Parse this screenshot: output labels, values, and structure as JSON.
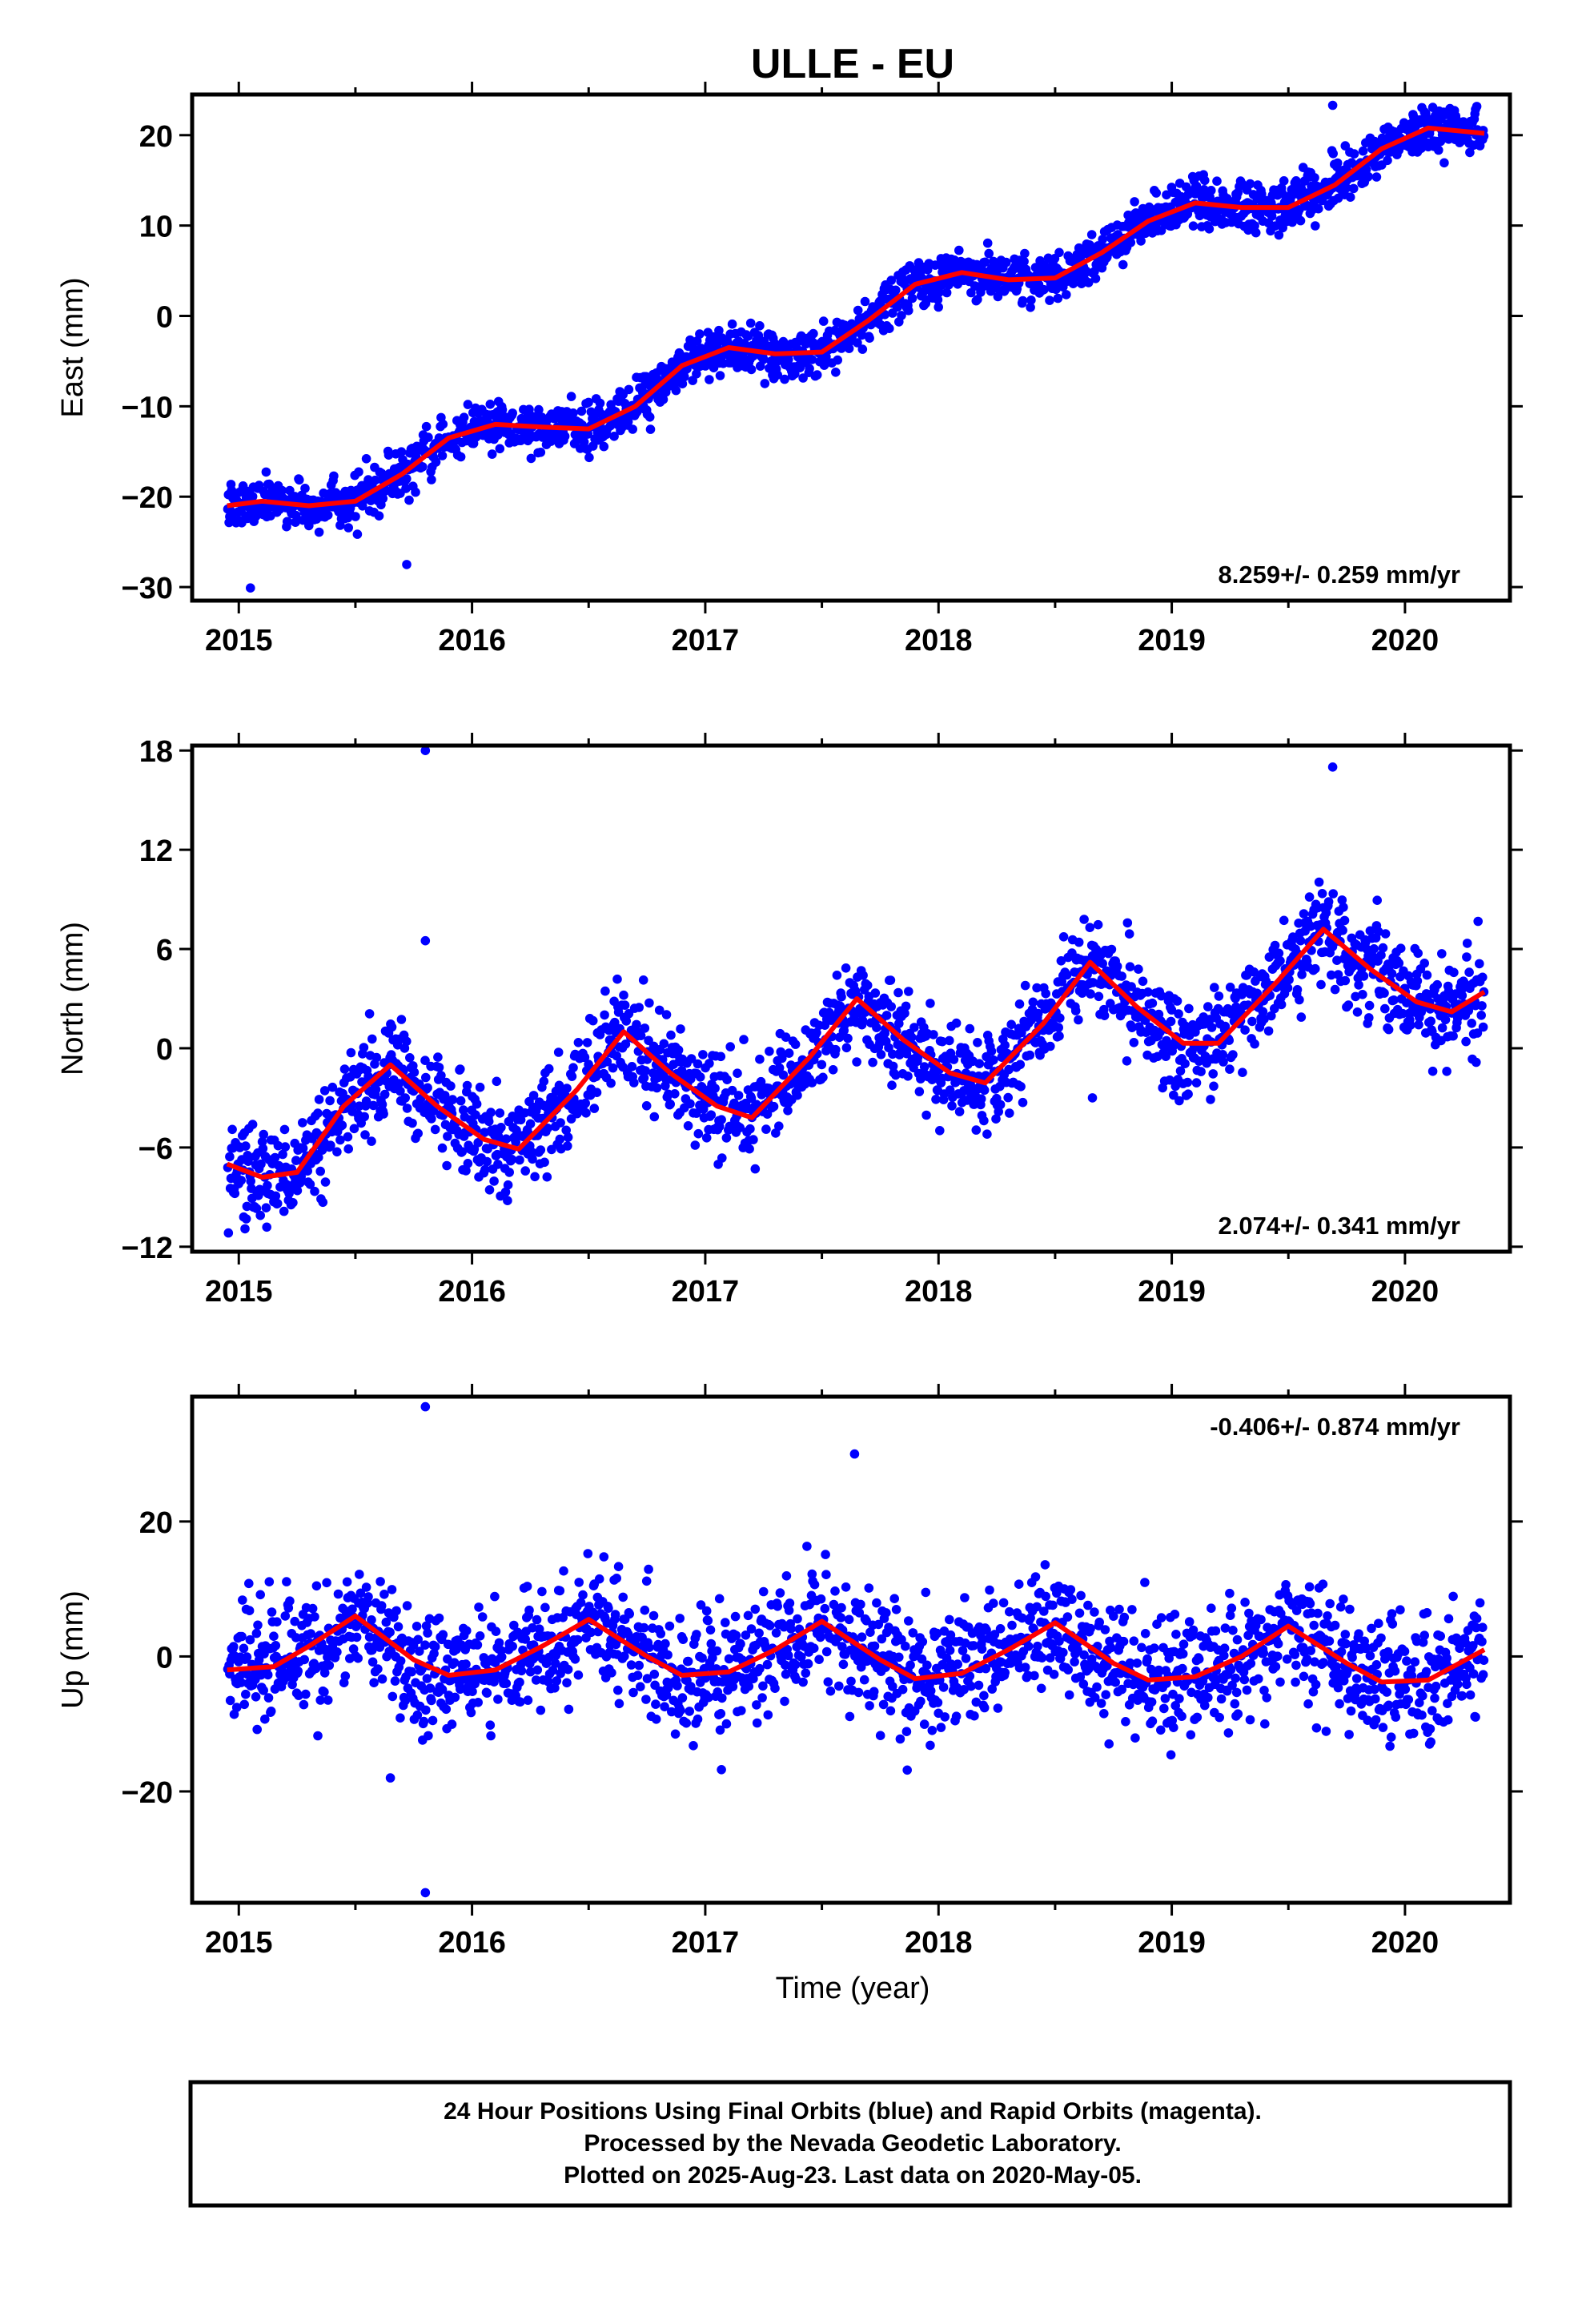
{
  "figure": {
    "title": "ULLE - EU",
    "xlabel": "Time (year)",
    "footer": [
      "24 Hour Positions Using Final Orbits (blue) and Rapid Orbits (magenta).",
      "Processed by the Nevada Geodetic Laboratory.",
      "Plotted on 2025-Aug-23. Last data on 2020-May-05."
    ],
    "colors": {
      "points": "#0000ff",
      "model": "#ff0000",
      "axes": "#000000"
    }
  },
  "chart_data": [
    {
      "type": "scatter",
      "ylabel": "East (mm)",
      "rate_label": "8.259+/- 0.259 mm/yr",
      "xlim": [
        2014.8,
        2020.45
      ],
      "ylim": [
        -31.5,
        24.5
      ],
      "xticks": [
        2015,
        2016,
        2017,
        2018,
        2019,
        2020
      ],
      "yticks": [
        -30,
        -20,
        -10,
        0,
        10,
        20
      ],
      "grid": false,
      "series": [
        {
          "marker": "dots",
          "x_range": [
            2014.95,
            2020.34
          ],
          "y_range_approx": [
            -30,
            23
          ],
          "outliers": [
            {
              "x": 2015.05,
              "y": -30.1
            },
            {
              "x": 2015.72,
              "y": -27.5
            },
            {
              "x": 2019.69,
              "y": 23.3
            }
          ]
        },
        {
          "line": "model",
          "x": [
            2014.95,
            2015.1,
            2015.3,
            2015.5,
            2015.7,
            2015.9,
            2016.1,
            2016.3,
            2016.5,
            2016.7,
            2016.9,
            2017.1,
            2017.3,
            2017.5,
            2017.7,
            2017.9,
            2018.1,
            2018.3,
            2018.5,
            2018.7,
            2018.9,
            2019.1,
            2019.3,
            2019.5,
            2019.7,
            2019.9,
            2020.1,
            2020.34
          ],
          "y": [
            -21.0,
            -20.5,
            -21.0,
            -20.5,
            -17.5,
            -13.5,
            -12.0,
            -12.3,
            -12.5,
            -10.0,
            -5.5,
            -3.5,
            -4.2,
            -4.0,
            -0.5,
            3.5,
            4.8,
            4.0,
            4.2,
            7.0,
            10.5,
            12.5,
            12.0,
            12.0,
            14.5,
            18.5,
            20.8,
            20.2
          ]
        }
      ]
    },
    {
      "type": "scatter",
      "ylabel": "North (mm)",
      "rate_label": "2.074+/- 0.341 mm/yr",
      "xlim": [
        2014.8,
        2020.45
      ],
      "ylim": [
        -12.3,
        18.3
      ],
      "xticks": [
        2015,
        2016,
        2017,
        2018,
        2019,
        2020
      ],
      "yticks": [
        -12,
        -6,
        0,
        6,
        12,
        18
      ],
      "grid": false,
      "series": [
        {
          "marker": "dots",
          "x_range": [
            2014.95,
            2020.34
          ],
          "y_range_approx": [
            -12,
            18
          ],
          "outliers": [
            {
              "x": 2015.8,
              "y": 18.0
            },
            {
              "x": 2015.8,
              "y": 6.5
            },
            {
              "x": 2019.69,
              "y": 17.0
            },
            {
              "x": 2018.66,
              "y": -3.0
            }
          ]
        },
        {
          "line": "model",
          "x": [
            2014.95,
            2015.1,
            2015.25,
            2015.45,
            2015.65,
            2015.85,
            2016.05,
            2016.2,
            2016.45,
            2016.65,
            2016.85,
            2017.05,
            2017.2,
            2017.45,
            2017.65,
            2017.85,
            2018.05,
            2018.2,
            2018.45,
            2018.65,
            2018.85,
            2019.05,
            2019.2,
            2019.45,
            2019.65,
            2019.85,
            2020.05,
            2020.2,
            2020.34
          ],
          "y": [
            -7.0,
            -7.8,
            -7.5,
            -3.5,
            -1.0,
            -3.5,
            -5.5,
            -6.1,
            -2.5,
            1.0,
            -1.5,
            -3.5,
            -4.2,
            -0.5,
            3.0,
            0.5,
            -1.5,
            -2.1,
            1.5,
            5.2,
            2.5,
            0.3,
            0.3,
            4.0,
            7.2,
            4.8,
            2.8,
            2.2,
            3.4
          ]
        }
      ]
    },
    {
      "type": "scatter",
      "ylabel": "Up (mm)",
      "rate_label": "-0.406+/- 0.874 mm/yr",
      "xlim": [
        2014.8,
        2020.45
      ],
      "ylim": [
        -36.5,
        38.5
      ],
      "xticks": [
        2015,
        2016,
        2017,
        2018,
        2019,
        2020
      ],
      "yticks": [
        -20,
        0,
        20
      ],
      "grid": false,
      "series": [
        {
          "marker": "dots",
          "x_range": [
            2014.95,
            2020.34
          ],
          "y_range_approx": [
            -18,
            22
          ],
          "outliers": [
            {
              "x": 2015.8,
              "y": 37.0
            },
            {
              "x": 2015.8,
              "y": -35.0
            },
            {
              "x": 2017.64,
              "y": 30.0
            },
            {
              "x": 2015.65,
              "y": -18.0
            }
          ]
        },
        {
          "line": "model",
          "x": [
            2014.95,
            2015.15,
            2015.3,
            2015.5,
            2015.75,
            2015.9,
            2016.1,
            2016.3,
            2016.5,
            2016.75,
            2016.9,
            2017.1,
            2017.3,
            2017.5,
            2017.75,
            2017.9,
            2018.1,
            2018.3,
            2018.5,
            2018.75,
            2018.9,
            2019.1,
            2019.3,
            2019.5,
            2019.75,
            2019.9,
            2020.1,
            2020.34
          ],
          "y": [
            -2.0,
            -1.5,
            1.5,
            6.0,
            -0.5,
            -2.8,
            -2.0,
            1.5,
            5.5,
            0.0,
            -2.8,
            -2.3,
            1.0,
            5.2,
            -0.5,
            -3.3,
            -2.5,
            1.0,
            5.0,
            -1.0,
            -3.5,
            -3.0,
            0.0,
            4.5,
            -1.0,
            -3.8,
            -3.5,
            1.0
          ]
        }
      ]
    }
  ]
}
